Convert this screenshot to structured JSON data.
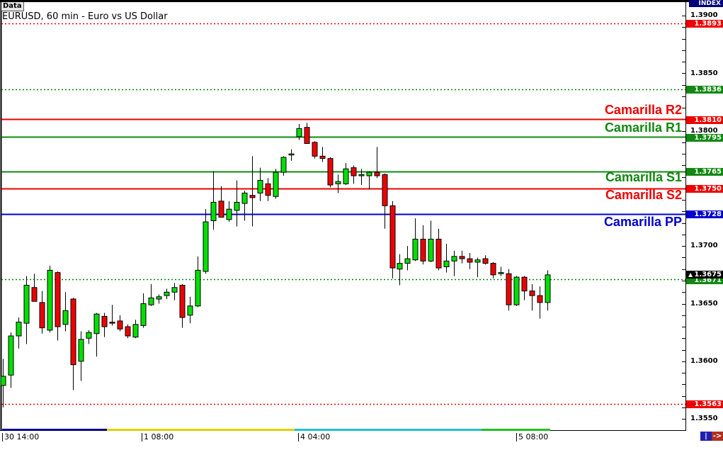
{
  "window": {
    "data_button": "Data",
    "title": "EURUSD, 60 min - Euro vs US Dollar",
    "axis_header": "INDEX"
  },
  "chart_data": {
    "type": "candlestick",
    "symbol": "EURUSD",
    "timeframe": "60 min",
    "ylim": [
      1.354,
      1.3905
    ],
    "y_ticks": [
      "1.3900",
      "1.3850",
      "1.3800",
      "1.3700",
      "1.3650",
      "1.3600",
      "1.3550"
    ],
    "x_ticks": [
      "30 14:00",
      "1 08:00",
      "4 04:00",
      "5 08:00"
    ],
    "x_tick_candle_index": [
      0,
      18,
      38,
      66
    ],
    "grid": false,
    "colors": {
      "up": "#00e000",
      "down": "#ee0000",
      "wick": "#000000"
    },
    "ohlc": [
      [
        1.3579,
        1.3602,
        1.356,
        1.3587
      ],
      [
        1.3588,
        1.3625,
        1.3577,
        1.3622
      ],
      [
        1.3622,
        1.3638,
        1.3611,
        1.3634
      ],
      [
        1.3633,
        1.3674,
        1.3615,
        1.3666
      ],
      [
        1.3664,
        1.3676,
        1.3652,
        1.3652
      ],
      [
        1.3651,
        1.3661,
        1.3624,
        1.3629
      ],
      [
        1.3627,
        1.3683,
        1.3625,
        1.3679
      ],
      [
        1.3677,
        1.3678,
        1.3618,
        1.363
      ],
      [
        1.3632,
        1.366,
        1.3626,
        1.3644
      ],
      [
        1.3654,
        1.3655,
        1.3575,
        1.3597
      ],
      [
        1.36,
        1.3626,
        1.3583,
        1.3619
      ],
      [
        1.362,
        1.3627,
        1.3615,
        1.3625
      ],
      [
        1.3624,
        1.3642,
        1.3604,
        1.3641
      ],
      [
        1.3639,
        1.3642,
        1.3621,
        1.363
      ],
      [
        1.3634,
        1.3649,
        1.3631,
        1.3633
      ],
      [
        1.3635,
        1.364,
        1.3626,
        1.3628
      ],
      [
        1.363,
        1.3632,
        1.362,
        1.3622
      ],
      [
        1.3621,
        1.3636,
        1.362,
        1.3632
      ],
      [
        1.3631,
        1.3659,
        1.3629,
        1.365
      ],
      [
        1.3649,
        1.3667,
        1.3648,
        1.3655
      ],
      [
        1.3654,
        1.3658,
        1.365,
        1.3656
      ],
      [
        1.3657,
        1.3663,
        1.3654,
        1.366
      ],
      [
        1.366,
        1.3668,
        1.3653,
        1.3664
      ],
      [
        1.3666,
        1.3667,
        1.3629,
        1.3638
      ],
      [
        1.364,
        1.3656,
        1.3633,
        1.3648
      ],
      [
        1.3648,
        1.3691,
        1.3647,
        1.3679
      ],
      [
        1.3678,
        1.3732,
        1.3676,
        1.3721
      ],
      [
        1.3722,
        1.3765,
        1.3714,
        1.3738
      ],
      [
        1.3739,
        1.3752,
        1.3725,
        1.3725
      ],
      [
        1.3723,
        1.3739,
        1.3721,
        1.3732
      ],
      [
        1.3731,
        1.3757,
        1.3717,
        1.3738
      ],
      [
        1.3737,
        1.3748,
        1.3722,
        1.3746
      ],
      [
        1.3744,
        1.3778,
        1.3717,
        1.3742
      ],
      [
        1.3746,
        1.3768,
        1.3739,
        1.3757
      ],
      [
        1.3754,
        1.3759,
        1.3739,
        1.3744
      ],
      [
        1.3743,
        1.3767,
        1.3741,
        1.3764
      ],
      [
        1.3764,
        1.3778,
        1.3761,
        1.3777
      ],
      [
        1.3779,
        1.3784,
        1.3774,
        1.378
      ],
      [
        1.3795,
        1.3806,
        1.3792,
        1.3802
      ],
      [
        1.3803,
        1.3807,
        1.3789,
        1.3789
      ],
      [
        1.379,
        1.3791,
        1.3776,
        1.3778
      ],
      [
        1.3778,
        1.3786,
        1.3773,
        1.3776
      ],
      [
        1.3776,
        1.3777,
        1.3751,
        1.3753
      ],
      [
        1.3754,
        1.3762,
        1.3746,
        1.3756
      ],
      [
        1.3754,
        1.3772,
        1.3753,
        1.3767
      ],
      [
        1.3768,
        1.377,
        1.3754,
        1.3761
      ],
      [
        1.3761,
        1.3767,
        1.3753,
        1.3762
      ],
      [
        1.3761,
        1.3765,
        1.3749,
        1.3764
      ],
      [
        1.3764,
        1.3786,
        1.3759,
        1.3761
      ],
      [
        1.3762,
        1.3763,
        1.3715,
        1.3735
      ],
      [
        1.3735,
        1.3739,
        1.3672,
        1.3681
      ],
      [
        1.368,
        1.3693,
        1.3666,
        1.3685
      ],
      [
        1.3685,
        1.37,
        1.3679,
        1.3689
      ],
      [
        1.3688,
        1.3724,
        1.3687,
        1.3706
      ],
      [
        1.3706,
        1.3718,
        1.3684,
        1.3687
      ],
      [
        1.3687,
        1.3722,
        1.3686,
        1.3706
      ],
      [
        1.3706,
        1.3715,
        1.3679,
        1.3681
      ],
      [
        1.3682,
        1.3702,
        1.3677,
        1.3687
      ],
      [
        1.3687,
        1.3696,
        1.3674,
        1.3691
      ],
      [
        1.3691,
        1.3696,
        1.3685,
        1.3689
      ],
      [
        1.3689,
        1.3694,
        1.368,
        1.3686
      ],
      [
        1.3686,
        1.369,
        1.3673,
        1.3688
      ],
      [
        1.3689,
        1.3692,
        1.3684,
        1.3685
      ],
      [
        1.3685,
        1.3686,
        1.3672,
        1.3675
      ],
      [
        1.3676,
        1.3682,
        1.3674,
        1.3677
      ],
      [
        1.3676,
        1.368,
        1.3644,
        1.3649
      ],
      [
        1.3649,
        1.3674,
        1.3648,
        1.3673
      ],
      [
        1.3673,
        1.3674,
        1.3653,
        1.3661
      ],
      [
        1.3661,
        1.3667,
        1.3644,
        1.3657
      ],
      [
        1.3657,
        1.3665,
        1.3637,
        1.3651
      ],
      [
        1.3651,
        1.3679,
        1.3644,
        1.3675
      ]
    ],
    "levels": [
      {
        "label": "",
        "value": "1.3893",
        "color": "#ee0000",
        "style": "dotted"
      },
      {
        "label": "",
        "value": "1.3836",
        "color": "#008000",
        "style": "dotted"
      },
      {
        "label": "Camarilla R2",
        "value": "1.3810",
        "color": "#ee0000",
        "style": "solid"
      },
      {
        "label": "Camarilla R1",
        "value": "1.3795",
        "color": "#118811",
        "style": "solid"
      },
      {
        "label": "Camarilla S1",
        "value": "1.3765",
        "color": "#118811",
        "style": "solid"
      },
      {
        "label": "Camarilla S2",
        "value": "1.3750",
        "color": "#ee0000",
        "style": "solid"
      },
      {
        "label": "Camarilla PP",
        "value": "1.3728",
        "color": "#0000cc",
        "style": "solid"
      },
      {
        "label": "",
        "value": "1.3671",
        "color": "#008000",
        "style": "dotted"
      },
      {
        "label": "",
        "value": "1.3563",
        "color": "#ee0000",
        "style": "dotted"
      }
    ],
    "current_price": "1.3675",
    "session_bar_colors": [
      "#00008b",
      "#e0d000",
      "#20c0d0",
      "#20c020"
    ]
  },
  "nav": {
    "scroll_left_icon": "|<-",
    "scroll_right_icon": "->"
  }
}
